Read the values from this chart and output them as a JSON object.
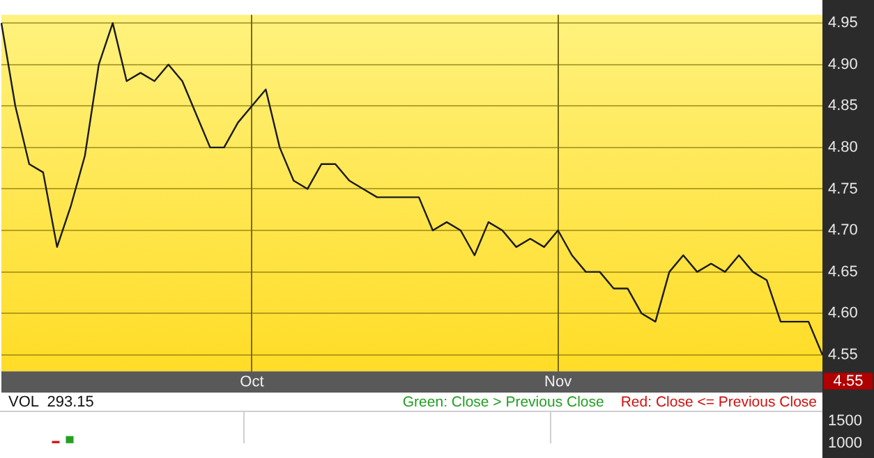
{
  "chart_data": [
    {
      "type": "line",
      "categories": [
        null,
        null,
        null,
        null,
        null,
        null,
        null,
        null,
        null,
        null,
        null,
        null,
        null,
        null,
        null,
        null,
        null,
        null,
        "Oct",
        null,
        null,
        null,
        null,
        null,
        null,
        null,
        null,
        null,
        null,
        null,
        null,
        null,
        null,
        null,
        null,
        null,
        null,
        null,
        null,
        null,
        "Nov",
        null,
        null,
        null,
        null,
        null,
        null,
        null,
        null,
        null,
        null,
        null,
        null,
        null,
        null,
        null,
        null,
        null,
        null,
        null
      ],
      "series": [
        {
          "color": "#1a1a1a",
          "values": [
            4.95,
            4.85,
            4.78,
            4.77,
            4.68,
            4.73,
            4.79,
            4.9,
            4.95,
            4.88,
            4.89,
            4.88,
            4.9,
            4.88,
            4.84,
            4.8,
            4.8,
            4.83,
            4.85,
            4.87,
            4.8,
            4.76,
            4.75,
            4.78,
            4.78,
            4.76,
            4.75,
            4.74,
            4.74,
            4.74,
            4.74,
            4.7,
            4.71,
            4.7,
            4.67,
            4.71,
            4.7,
            4.68,
            4.69,
            4.68,
            4.7,
            4.67,
            4.65,
            4.65,
            4.63,
            4.63,
            4.6,
            4.59,
            4.65,
            4.67,
            4.65,
            4.66,
            4.65,
            4.67,
            4.65,
            4.64,
            4.59,
            4.59,
            4.59,
            4.55
          ]
        }
      ],
      "ylim": [
        4.53,
        4.96
      ],
      "yticks": [
        4.55,
        {
          "value": 4.6,
          "label": "4.60"
        },
        4.65,
        {
          "value": 4.7,
          "label": "4.70"
        },
        4.75,
        {
          "value": 4.8,
          "label": "4.80"
        },
        4.85,
        {
          "value": 4.9,
          "label": "4.90"
        },
        4.95
      ],
      "grid": true,
      "marker": "none",
      "legend": false,
      "annotations": [
        "4.55"
      ]
    },
    {
      "type": "bar",
      "title": "VOL  293.15",
      "categories": [
        null,
        null,
        null,
        null,
        null,
        null,
        null,
        null,
        null,
        null,
        null,
        null,
        null,
        null,
        null,
        null,
        null,
        null,
        null,
        null,
        null,
        null,
        null,
        null,
        null,
        null,
        null,
        null,
        null,
        null,
        null,
        null,
        null,
        null,
        null,
        null,
        null,
        null,
        null,
        null,
        null,
        null,
        null,
        null,
        null,
        null,
        null,
        null,
        null,
        null,
        null,
        null,
        null,
        null,
        null,
        null,
        null,
        null,
        null,
        null
      ],
      "series": [
        {
          "name": "Green: Close > Previous Close",
          "color": "#22a022",
          "values": [
            null,
            null,
            null,
            null,
            null,
            1160,
            null,
            null,
            null,
            null,
            null,
            null,
            null,
            null,
            null,
            null,
            null,
            null,
            null,
            null,
            null,
            null,
            null,
            null,
            null,
            null,
            null,
            null,
            null,
            null,
            null,
            null,
            null,
            null,
            null,
            null,
            null,
            null,
            null,
            null,
            null,
            null,
            null,
            null,
            null,
            null,
            null,
            null,
            null,
            null,
            null,
            null,
            null,
            null,
            null,
            null,
            null,
            null,
            null,
            null
          ]
        },
        {
          "name": "Red: Close <= Previous Close",
          "color": "#d01010",
          "values": [
            null,
            null,
            null,
            null,
            1050,
            null,
            null,
            null,
            null,
            null,
            null,
            null,
            null,
            null,
            null,
            null,
            null,
            null,
            null,
            null,
            null,
            null,
            null,
            null,
            null,
            null,
            null,
            null,
            null,
            null,
            null,
            null,
            null,
            null,
            null,
            null,
            null,
            null,
            null,
            null,
            null,
            null,
            null,
            null,
            null,
            null,
            null,
            null,
            null,
            null,
            null,
            null,
            null,
            null,
            null,
            null,
            null,
            null,
            null,
            null
          ]
        }
      ],
      "ylim": [
        1000,
        1700
      ],
      "yticks": [
        1000,
        1500
      ],
      "grid": "x",
      "legend": "top right",
      "tick_labels": "y"
    }
  ]
}
